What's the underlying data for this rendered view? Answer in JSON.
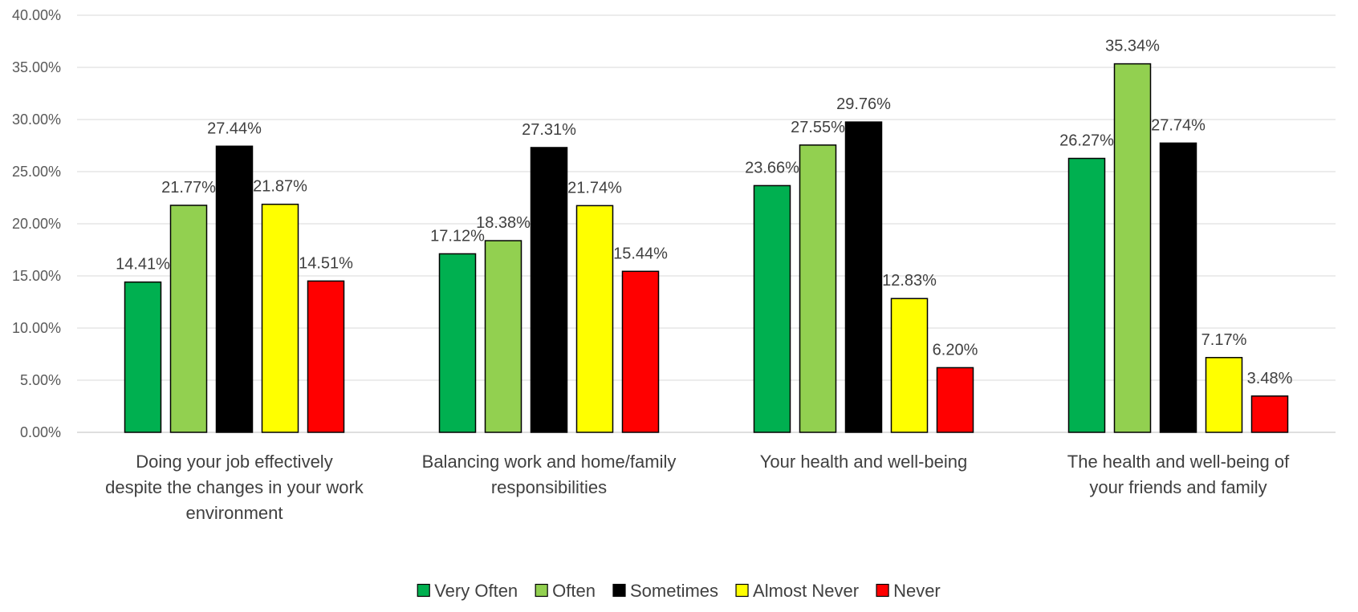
{
  "chart_data": {
    "type": "bar",
    "title": "",
    "xlabel": "",
    "ylabel": "",
    "ylim": [
      0,
      40
    ],
    "y_ticks": [
      "0.00%",
      "5.00%",
      "10.00%",
      "15.00%",
      "20.00%",
      "25.00%",
      "30.00%",
      "35.00%",
      "40.00%"
    ],
    "grid": true,
    "legend_position": "bottom",
    "categories": [
      [
        "Doing your job effectively",
        "despite the changes in your work",
        "environment"
      ],
      [
        "Balancing work and home/family",
        "responsibilities"
      ],
      [
        "Your health and well-being"
      ],
      [
        "The health and well-being of",
        "your friends and family"
      ]
    ],
    "series": [
      {
        "name": "Very Often",
        "color": "#00b050",
        "values": [
          14.41,
          17.12,
          23.66,
          26.27
        ],
        "labels": [
          "14.41%",
          "17.12%",
          "23.66%",
          "26.27%"
        ]
      },
      {
        "name": "Often",
        "color": "#92d050",
        "values": [
          21.77,
          18.38,
          27.55,
          35.34
        ],
        "labels": [
          "21.77%",
          "18.38%",
          "27.55%",
          "35.34%"
        ]
      },
      {
        "name": "Sometimes",
        "color": "#000000",
        "values": [
          27.44,
          27.31,
          29.76,
          27.74
        ],
        "labels": [
          "27.44%",
          "27.31%",
          "29.76%",
          "27.74%"
        ]
      },
      {
        "name": "Almost Never",
        "color": "#ffff00",
        "values": [
          21.87,
          21.74,
          12.83,
          7.17
        ],
        "labels": [
          "21.87%",
          "21.74%",
          "12.83%",
          "7.17%"
        ]
      },
      {
        "name": "Never",
        "color": "#ff0000",
        "values": [
          14.51,
          15.44,
          6.2,
          3.48
        ],
        "labels": [
          "14.51%",
          "15.44%",
          "6.20%",
          "3.48%"
        ]
      }
    ]
  }
}
